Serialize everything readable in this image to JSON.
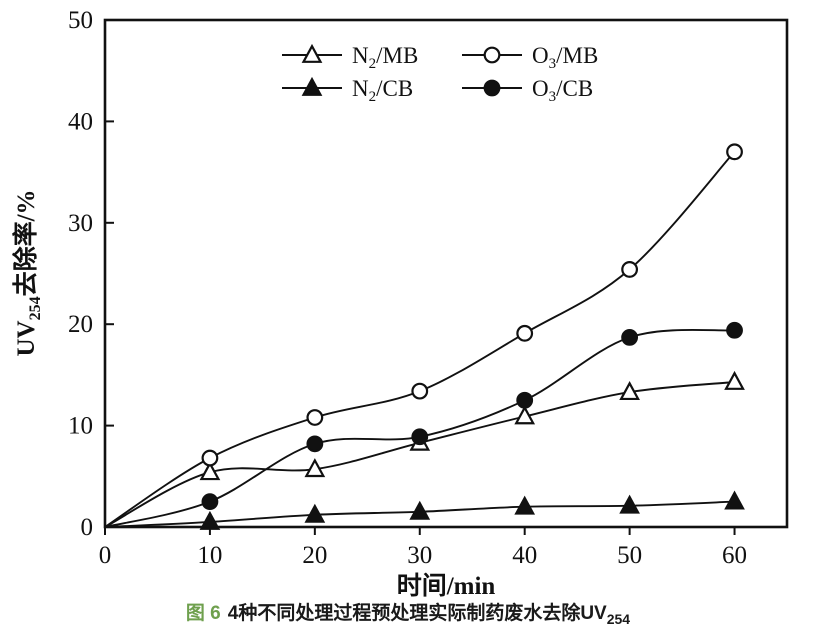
{
  "chart_data": {
    "type": "line",
    "title": "",
    "xlabel": "时间/min",
    "ylabel": {
      "pre": "UV",
      "sub": "254",
      "post": "去除率/%",
      "full": "UV254去除率/%"
    },
    "xlim": [
      0,
      65
    ],
    "ylim": [
      0,
      50
    ],
    "xticks": [
      0,
      10,
      20,
      30,
      40,
      50,
      60
    ],
    "yticks": [
      0,
      10,
      20,
      30,
      40,
      50
    ],
    "grid": false,
    "line_color": "#111111",
    "x": [
      0,
      10,
      20,
      30,
      40,
      50,
      60
    ],
    "series": [
      {
        "name": "N2/MB",
        "label": {
          "pre": "N",
          "sub": "2",
          "post": "/MB"
        },
        "marker": "triangle-open",
        "values": [
          0,
          5.4,
          5.7,
          8.3,
          10.9,
          13.3,
          14.3
        ]
      },
      {
        "name": "N2/CB",
        "label": {
          "pre": "N",
          "sub": "2",
          "post": "/CB"
        },
        "marker": "triangle-filled",
        "values": [
          0,
          0.5,
          1.2,
          1.5,
          2.0,
          2.1,
          2.5
        ]
      },
      {
        "name": "O3/MB",
        "label": {
          "pre": "O",
          "sub": "3",
          "post": "/MB"
        },
        "marker": "circle-open",
        "values": [
          0,
          6.8,
          10.8,
          13.4,
          19.1,
          25.4,
          37.0
        ]
      },
      {
        "name": "O3/CB",
        "label": {
          "pre": "O",
          "sub": "3",
          "post": "/CB"
        },
        "marker": "circle-filled",
        "values": [
          0,
          2.5,
          8.2,
          8.9,
          12.5,
          18.7,
          19.4
        ]
      }
    ],
    "legend": {
      "position": "top-center",
      "rows": [
        [
          "N2/MB",
          "O3/MB"
        ],
        [
          "N2/CB",
          "O3/CB"
        ]
      ]
    }
  },
  "caption": {
    "fig_label": "图 6",
    "fig_label_color": "#6fa04e",
    "text": "4种不同处理过程预处理实际制药废水去除UV",
    "sub": "254"
  }
}
